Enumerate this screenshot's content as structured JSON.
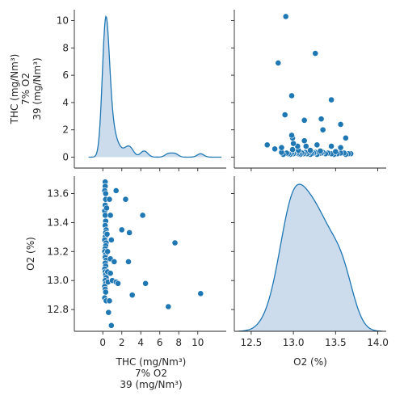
{
  "chart_data": {
    "type": "pairplot",
    "variables": [
      "THC (mg/Nm³)\n7% O2\n39 (mg/Nm³)",
      "O2 (%)"
    ],
    "colors": {
      "series": "#1f77b4",
      "kde_fill": "#c6d8eb"
    },
    "points": [
      {
        "thc": 0.25,
        "o2": 13.68
      },
      {
        "thc": 0.25,
        "o2": 13.65
      },
      {
        "thc": 0.2,
        "o2": 13.62
      },
      {
        "thc": 0.3,
        "o2": 13.6
      },
      {
        "thc": 0.3,
        "o2": 13.56
      },
      {
        "thc": 0.25,
        "o2": 13.52
      },
      {
        "thc": 0.2,
        "o2": 13.48
      },
      {
        "thc": 0.25,
        "o2": 13.45
      },
      {
        "thc": 0.3,
        "o2": 13.41
      },
      {
        "thc": 0.25,
        "o2": 13.38
      },
      {
        "thc": 0.35,
        "o2": 13.35
      },
      {
        "thc": 0.3,
        "o2": 13.33
      },
      {
        "thc": 0.25,
        "o2": 13.3
      },
      {
        "thc": 0.2,
        "o2": 13.28
      },
      {
        "thc": 0.35,
        "o2": 13.26
      },
      {
        "thc": 0.3,
        "o2": 13.24
      },
      {
        "thc": 0.25,
        "o2": 13.22
      },
      {
        "thc": 0.2,
        "o2": 13.2
      },
      {
        "thc": 0.3,
        "o2": 13.18
      },
      {
        "thc": 0.25,
        "o2": 13.16
      },
      {
        "thc": 0.35,
        "o2": 13.14
      },
      {
        "thc": 0.25,
        "o2": 13.12
      },
      {
        "thc": 0.3,
        "o2": 13.1
      },
      {
        "thc": 0.2,
        "o2": 13.08
      },
      {
        "thc": 0.25,
        "o2": 13.06
      },
      {
        "thc": 0.3,
        "o2": 13.04
      },
      {
        "thc": 0.35,
        "o2": 13.02
      },
      {
        "thc": 0.25,
        "o2": 13.0
      },
      {
        "thc": 0.3,
        "o2": 12.98
      },
      {
        "thc": 0.2,
        "o2": 12.96
      },
      {
        "thc": 0.25,
        "o2": 12.94
      },
      {
        "thc": 0.3,
        "o2": 12.92
      },
      {
        "thc": 0.2,
        "o2": 12.88
      },
      {
        "thc": 0.35,
        "o2": 12.86
      },
      {
        "thc": 0.4,
        "o2": 13.5
      },
      {
        "thc": 0.45,
        "o2": 13.32
      },
      {
        "thc": 0.5,
        "o2": 13.2
      },
      {
        "thc": 0.5,
        "o2": 13.06
      },
      {
        "thc": 0.55,
        "o2": 12.99
      },
      {
        "thc": 0.7,
        "o2": 12.86
      },
      {
        "thc": 0.6,
        "o2": 12.78
      },
      {
        "thc": 0.7,
        "o2": 13.56
      },
      {
        "thc": 0.8,
        "o2": 13.45
      },
      {
        "thc": 0.8,
        "o2": 13.15
      },
      {
        "thc": 0.8,
        "o2": 13.05
      },
      {
        "thc": 1.0,
        "o2": 13.0
      },
      {
        "thc": 0.9,
        "o2": 13.28
      },
      {
        "thc": 0.9,
        "o2": 12.69
      },
      {
        "thc": 1.2,
        "o2": 13.13
      },
      {
        "thc": 1.4,
        "o2": 12.99
      },
      {
        "thc": 1.4,
        "o2": 13.62
      },
      {
        "thc": 1.6,
        "o2": 12.98
      },
      {
        "thc": 2.0,
        "o2": 13.35
      },
      {
        "thc": 2.4,
        "o2": 13.56
      },
      {
        "thc": 2.7,
        "o2": 13.13
      },
      {
        "thc": 2.8,
        "o2": 13.33
      },
      {
        "thc": 3.1,
        "o2": 12.9
      },
      {
        "thc": 4.2,
        "o2": 13.45
      },
      {
        "thc": 4.5,
        "o2": 12.98
      },
      {
        "thc": 6.9,
        "o2": 12.82
      },
      {
        "thc": 7.6,
        "o2": 13.26
      },
      {
        "thc": 10.3,
        "o2": 12.91
      }
    ],
    "axes": {
      "thc": {
        "range": [
          -3,
          13
        ],
        "ticks": [
          0,
          2,
          4,
          6,
          8,
          10
        ]
      },
      "o2": {
        "range": [
          12.3,
          14.1
        ],
        "ticks": [
          12.5,
          13.0,
          13.5,
          14.0
        ],
        "row_ticks": [
          12.8,
          13.0,
          13.2,
          13.4,
          13.6
        ],
        "row_range": [
          12.65,
          13.72
        ]
      }
    },
    "diag_density_max_label_range": [
      0,
      10.8
    ],
    "diag_ticks": [
      0,
      2,
      4,
      6,
      8,
      10
    ]
  }
}
